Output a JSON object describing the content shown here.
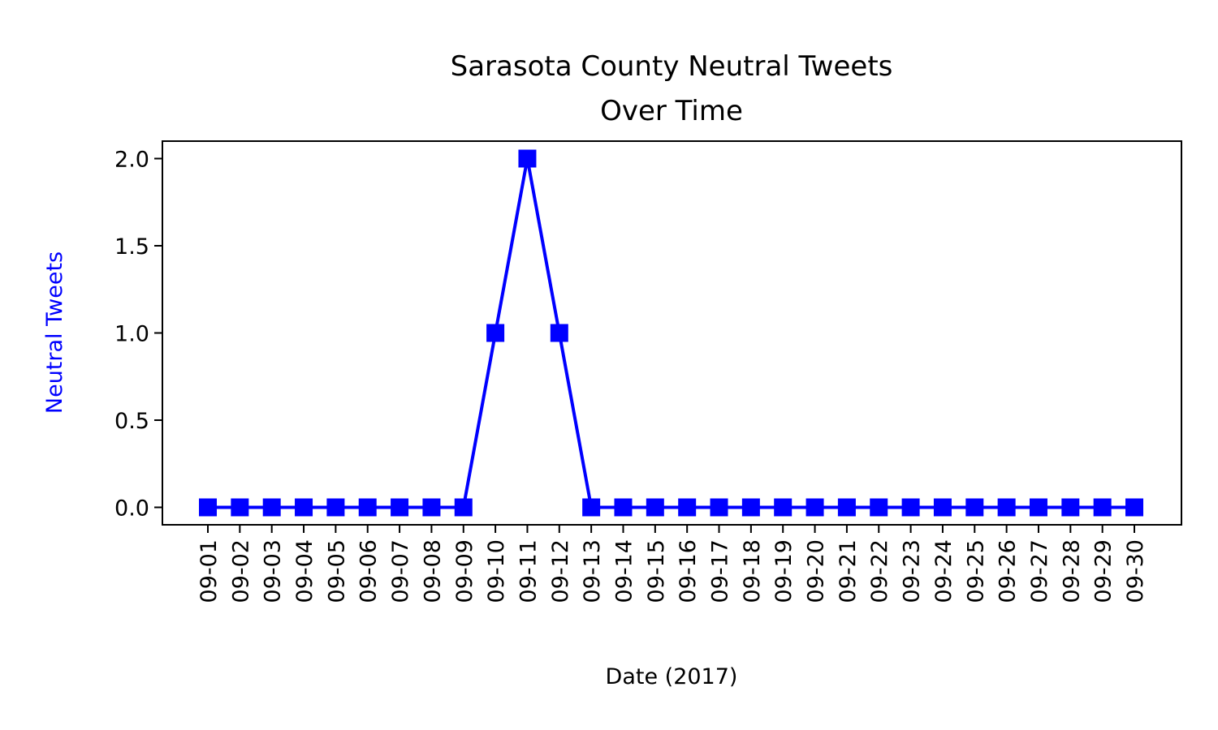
{
  "chart_data": {
    "type": "line",
    "title_lines": [
      "Sarasota County Neutral Tweets",
      "Over Time"
    ],
    "xlabel": "Date (2017)",
    "ylabel": "Neutral Tweets",
    "categories": [
      "09-01",
      "09-02",
      "09-03",
      "09-04",
      "09-05",
      "09-06",
      "09-07",
      "09-08",
      "09-09",
      "09-10",
      "09-11",
      "09-12",
      "09-13",
      "09-14",
      "09-15",
      "09-16",
      "09-17",
      "09-18",
      "09-19",
      "09-20",
      "09-21",
      "09-22",
      "09-23",
      "09-24",
      "09-25",
      "09-26",
      "09-27",
      "09-28",
      "09-29",
      "09-30"
    ],
    "series": [
      {
        "values": [
          0,
          0,
          0,
          0,
          0,
          0,
          0,
          0,
          0,
          1,
          2,
          1,
          0,
          0,
          0,
          0,
          0,
          0,
          0,
          0,
          0,
          0,
          0,
          0,
          0,
          0,
          0,
          0,
          0,
          0
        ],
        "color": "#0000ff",
        "marker": "square"
      }
    ],
    "ylim": [
      -0.1,
      2.1
    ],
    "yticks": [
      "0.0",
      "0.5",
      "1.0",
      "1.5",
      "2.0"
    ],
    "ytick_values": [
      0,
      0.5,
      1.0,
      1.5,
      2.0
    ],
    "ylabel_color": "#0000ff",
    "grid": false,
    "legend": "none"
  }
}
